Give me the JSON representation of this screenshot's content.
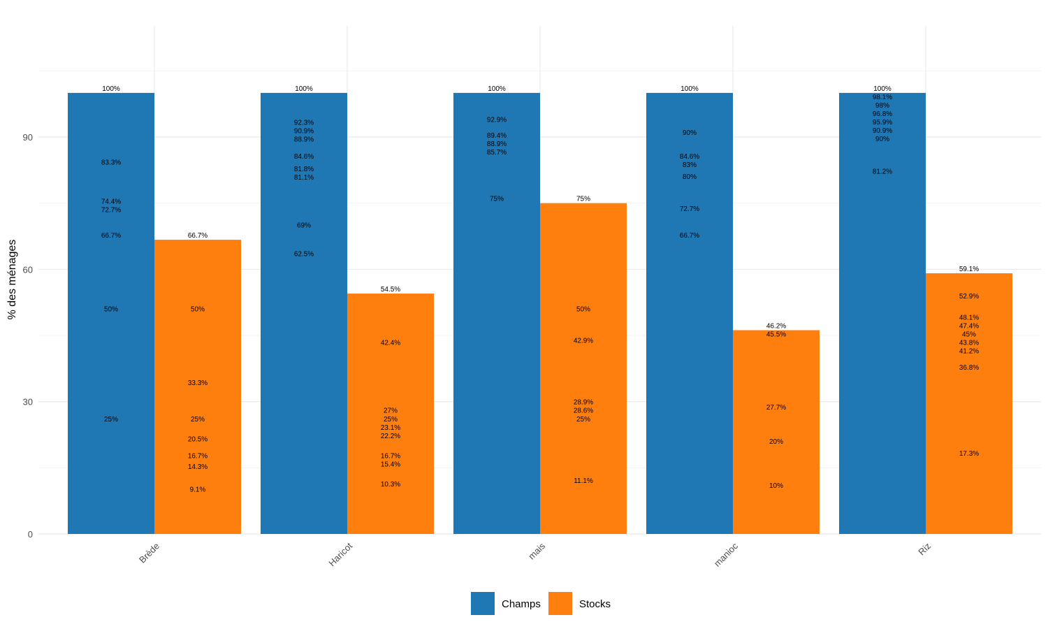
{
  "chart_data": {
    "type": "bar",
    "title": "",
    "xlabel": "",
    "ylabel": "% des ménages",
    "ylim": [
      0,
      115
    ],
    "yticks": [
      0,
      30,
      60,
      90
    ],
    "grid": true,
    "legend_position": "bottom",
    "categories": [
      "Brède",
      "Haricot",
      "mais",
      "manioc",
      "Riz"
    ],
    "series": [
      {
        "name": "Champs",
        "color": "#1f77b4",
        "values": [
          100,
          100,
          100,
          100,
          100
        ],
        "labels": [
          [
            100,
            83.3,
            74.4,
            72.7,
            66.7,
            50,
            25
          ],
          [
            100,
            92.3,
            90.9,
            88.9,
            84.6,
            81.8,
            81.1,
            69,
            62.5
          ],
          [
            100,
            92.9,
            89.4,
            88.9,
            85.7,
            75
          ],
          [
            100,
            90,
            84.6,
            83,
            80,
            72.7,
            66.7
          ],
          [
            100,
            98.1,
            98,
            96.8,
            95.9,
            90.9,
            90,
            81.2
          ]
        ]
      },
      {
        "name": "Stocks",
        "color": "#ff7f0e",
        "values": [
          66.7,
          54.5,
          75,
          46.2,
          59.1
        ],
        "labels": [
          [
            66.7,
            50,
            33.3,
            25,
            20.5,
            16.7,
            14.3,
            9.1
          ],
          [
            54.5,
            42.4,
            27,
            25,
            23.1,
            22.2,
            16.7,
            15.4,
            10.3
          ],
          [
            75,
            50,
            42.9,
            28.9,
            28.6,
            25,
            11.1
          ],
          [
            46.2,
            45.5,
            27.7,
            20,
            10
          ],
          [
            59.1,
            52.9,
            48.1,
            47.4,
            45,
            43.8,
            41.2,
            36.8,
            17.3
          ]
        ]
      }
    ]
  }
}
